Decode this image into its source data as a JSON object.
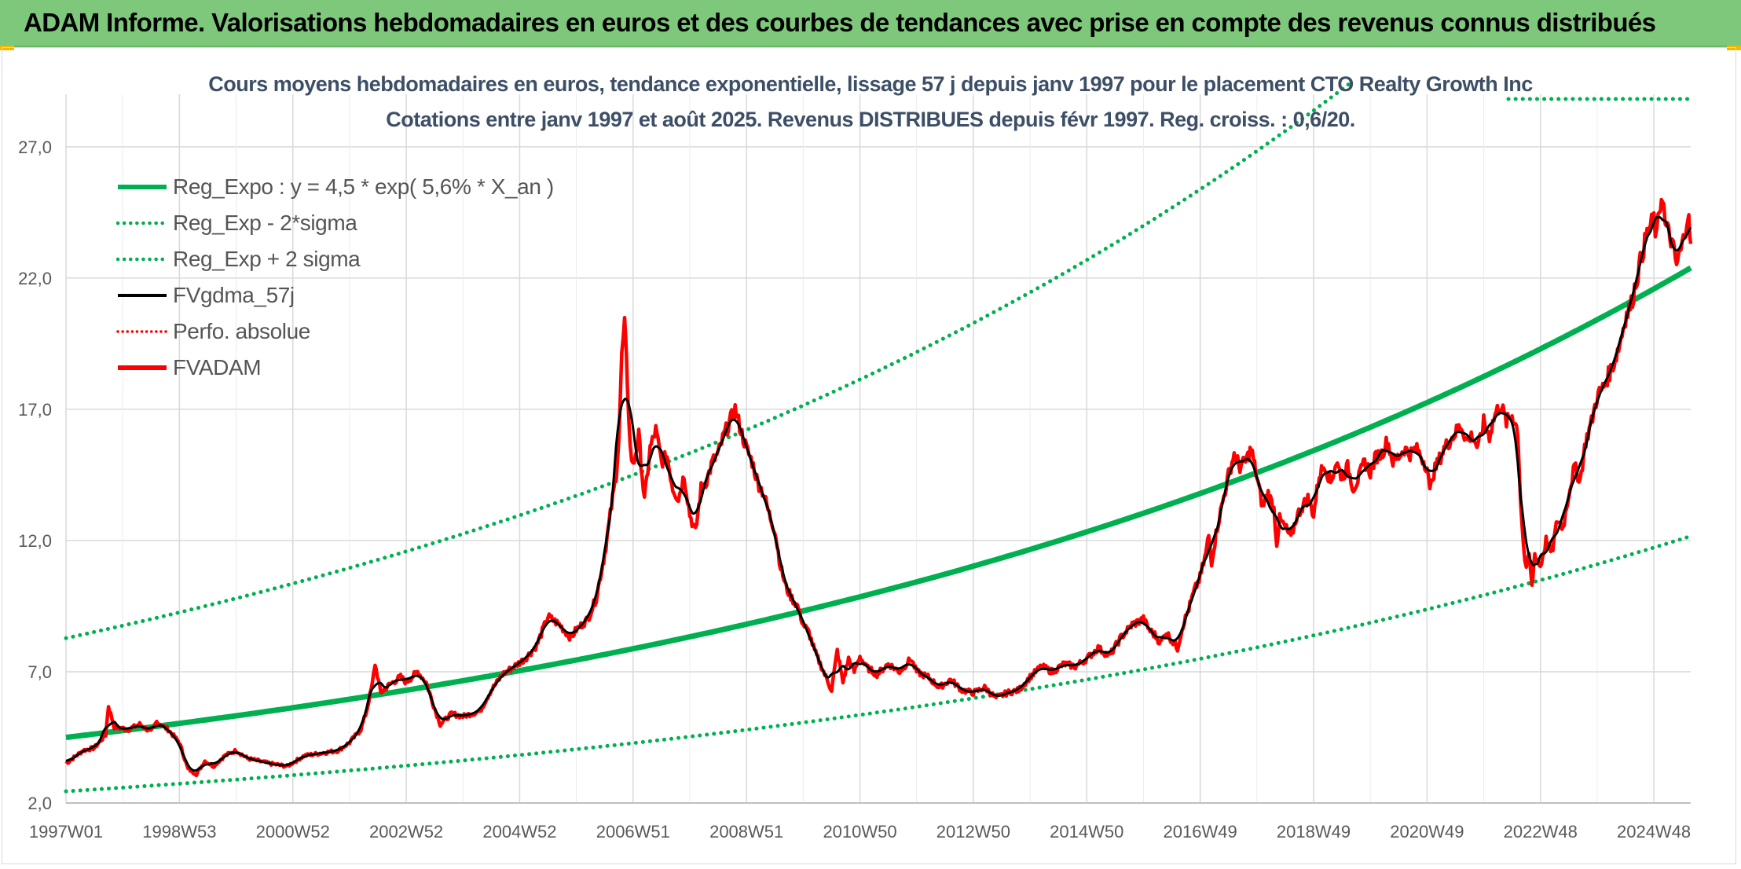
{
  "header": {
    "banner_title": "ADAM Informe. Valorisations hebdomadaires en euros et des courbes de tendances avec prise en compte des revenus connus distribués"
  },
  "colors": {
    "banner_bg": "#7ec87b",
    "title_text": "#3d4f66",
    "trend_green": "#00b050",
    "adam_red": "#ff0000",
    "smooth_black": "#000000"
  },
  "chart_data": {
    "type": "line",
    "title_line1": "Cours moyens hebdomadaires en euros, tendance exponentielle, lissage 57 j depuis janv 1997 pour le placement CTO Realty Growth Inc",
    "title_line2": "Cotations entre janv 1997 et août 2025. Revenus DISTRIBUES depuis févr 1997. Reg. croiss. : 0,6/20.",
    "ylim": [
      2.0,
      29.0
    ],
    "xlim": [
      1997.0,
      2025.65
    ],
    "grid": true,
    "legend_position": "top-left",
    "y_ticks": [
      "2,0",
      "7,0",
      "12,0",
      "17,0",
      "22,0",
      "27,0"
    ],
    "y_tick_values": [
      2,
      7,
      12,
      17,
      22,
      27
    ],
    "x_ticks": [
      "1997W01",
      "1998W53",
      "2000W52",
      "2002W52",
      "2004W52",
      "2006W51",
      "2008W51",
      "2010W50",
      "2012W50",
      "2014W50",
      "2016W49",
      "2018W49",
      "2020W49",
      "2022W48",
      "2024W48"
    ],
    "x_tick_values": [
      1997.0,
      1999.0,
      2001.0,
      2003.0,
      2005.0,
      2007.0,
      2009.0,
      2011.0,
      2013.0,
      2015.0,
      2017.0,
      2019.0,
      2021.0,
      2023.0,
      2025.0
    ],
    "regression": {
      "a": 4.5,
      "rate": 0.056,
      "sigma_factor": 1.84
    },
    "series": [
      {
        "name": "Reg_Expo : y = 4,5 * exp( 5,6% *  X_an )",
        "style": "solid-thick",
        "color": "#00b050"
      },
      {
        "name": "Reg_Exp - 2*sigma",
        "style": "dotted",
        "color": "#00b050"
      },
      {
        "name": "Reg_Exp + 2 sigma",
        "style": "dotted",
        "color": "#00b050"
      },
      {
        "name": "FVgdma_57j",
        "style": "solid",
        "color": "#000000"
      },
      {
        "name": "Perfo. absolue",
        "style": "dotted",
        "color": "#ff0000"
      },
      {
        "name": "FVADAM",
        "style": "solid-thick",
        "color": "#ff0000"
      }
    ],
    "fvadam_points": [
      [
        1997.0,
        3.5
      ],
      [
        1997.3,
        4.0
      ],
      [
        1997.5,
        4.1
      ],
      [
        1997.7,
        4.6
      ],
      [
        1997.75,
        5.7
      ],
      [
        1997.85,
        4.9
      ],
      [
        1998.1,
        4.8
      ],
      [
        1998.3,
        5.0
      ],
      [
        1998.5,
        4.7
      ],
      [
        1998.6,
        5.1
      ],
      [
        1998.8,
        4.8
      ],
      [
        1999.0,
        4.3
      ],
      [
        1999.15,
        3.3
      ],
      [
        1999.3,
        3.1
      ],
      [
        1999.45,
        3.6
      ],
      [
        1999.6,
        3.4
      ],
      [
        1999.8,
        3.8
      ],
      [
        2000.0,
        4.0
      ],
      [
        2000.2,
        3.7
      ],
      [
        2000.4,
        3.6
      ],
      [
        2000.6,
        3.5
      ],
      [
        2000.9,
        3.4
      ],
      [
        2001.2,
        3.8
      ],
      [
        2001.5,
        3.9
      ],
      [
        2001.8,
        4.0
      ],
      [
        2002.0,
        4.3
      ],
      [
        2002.2,
        4.8
      ],
      [
        2002.3,
        5.5
      ],
      [
        2002.4,
        6.5
      ],
      [
        2002.45,
        7.3
      ],
      [
        2002.55,
        6.2
      ],
      [
        2002.7,
        6.5
      ],
      [
        2002.9,
        6.8
      ],
      [
        2003.0,
        6.6
      ],
      [
        2003.2,
        7.0
      ],
      [
        2003.35,
        6.6
      ],
      [
        2003.5,
        5.6
      ],
      [
        2003.6,
        5.0
      ],
      [
        2003.8,
        5.4
      ],
      [
        2004.0,
        5.3
      ],
      [
        2004.3,
        5.5
      ],
      [
        2004.5,
        6.3
      ],
      [
        2004.7,
        6.9
      ],
      [
        2004.9,
        7.2
      ],
      [
        2005.1,
        7.5
      ],
      [
        2005.3,
        8.0
      ],
      [
        2005.5,
        9.1
      ],
      [
        2005.7,
        8.8
      ],
      [
        2005.9,
        8.3
      ],
      [
        2006.0,
        8.6
      ],
      [
        2006.2,
        9.0
      ],
      [
        2006.35,
        9.8
      ],
      [
        2006.5,
        11.5
      ],
      [
        2006.6,
        13.0
      ],
      [
        2006.7,
        14.5
      ],
      [
        2006.75,
        16.0
      ],
      [
        2006.8,
        19.0
      ],
      [
        2006.85,
        20.3
      ],
      [
        2006.9,
        18.0
      ],
      [
        2006.95,
        15.5
      ],
      [
        2007.0,
        14.8
      ],
      [
        2007.1,
        16.0
      ],
      [
        2007.2,
        13.5
      ],
      [
        2007.3,
        15.5
      ],
      [
        2007.4,
        16.2
      ],
      [
        2007.5,
        15.0
      ],
      [
        2007.6,
        15.2
      ],
      [
        2007.7,
        14.0
      ],
      [
        2007.8,
        13.6
      ],
      [
        2007.9,
        14.5
      ],
      [
        2008.0,
        13.0
      ],
      [
        2008.1,
        12.3
      ],
      [
        2008.2,
        14.0
      ],
      [
        2008.3,
        14.3
      ],
      [
        2008.4,
        15.0
      ],
      [
        2008.5,
        15.3
      ],
      [
        2008.6,
        16.0
      ],
      [
        2008.7,
        16.5
      ],
      [
        2008.8,
        17.0
      ],
      [
        2008.9,
        16.2
      ],
      [
        2009.0,
        15.5
      ],
      [
        2009.1,
        15.0
      ],
      [
        2009.2,
        14.2
      ],
      [
        2009.3,
        13.8
      ],
      [
        2009.4,
        13.0
      ],
      [
        2009.5,
        12.4
      ],
      [
        2009.6,
        11.0
      ],
      [
        2009.7,
        10.2
      ],
      [
        2009.8,
        9.8
      ],
      [
        2009.9,
        9.5
      ],
      [
        2010.0,
        8.8
      ],
      [
        2010.1,
        8.5
      ],
      [
        2010.2,
        7.8
      ],
      [
        2010.3,
        7.3
      ],
      [
        2010.4,
        6.8
      ],
      [
        2010.5,
        6.3
      ],
      [
        2010.6,
        7.8
      ],
      [
        2010.7,
        6.6
      ],
      [
        2010.8,
        7.5
      ],
      [
        2010.9,
        7.0
      ],
      [
        2011.0,
        7.6
      ],
      [
        2011.1,
        7.2
      ],
      [
        2011.3,
        6.9
      ],
      [
        2011.5,
        7.3
      ],
      [
        2011.7,
        7.0
      ],
      [
        2011.9,
        7.5
      ],
      [
        2012.0,
        7.0
      ],
      [
        2012.2,
        6.8
      ],
      [
        2012.4,
        6.4
      ],
      [
        2012.6,
        6.7
      ],
      [
        2012.8,
        6.3
      ],
      [
        2013.0,
        6.2
      ],
      [
        2013.2,
        6.4
      ],
      [
        2013.4,
        6.0
      ],
      [
        2013.6,
        6.2
      ],
      [
        2013.8,
        6.3
      ],
      [
        2014.0,
        6.8
      ],
      [
        2014.2,
        7.2
      ],
      [
        2014.4,
        7.0
      ],
      [
        2014.6,
        7.3
      ],
      [
        2014.8,
        7.2
      ],
      [
        2015.0,
        7.5
      ],
      [
        2015.2,
        7.9
      ],
      [
        2015.4,
        7.6
      ],
      [
        2015.6,
        8.3
      ],
      [
        2015.8,
        8.8
      ],
      [
        2015.9,
        8.9
      ],
      [
        2016.0,
        9.0
      ],
      [
        2016.1,
        8.6
      ],
      [
        2016.2,
        8.4
      ],
      [
        2016.3,
        8.1
      ],
      [
        2016.4,
        8.5
      ],
      [
        2016.5,
        8.2
      ],
      [
        2016.6,
        7.9
      ],
      [
        2016.7,
        8.8
      ],
      [
        2016.8,
        9.4
      ],
      [
        2016.9,
        10.1
      ],
      [
        2017.0,
        10.6
      ],
      [
        2017.1,
        11.5
      ],
      [
        2017.15,
        12.2
      ],
      [
        2017.2,
        11.2
      ],
      [
        2017.3,
        12.5
      ],
      [
        2017.4,
        13.5
      ],
      [
        2017.5,
        14.5
      ],
      [
        2017.6,
        15.3
      ],
      [
        2017.7,
        14.8
      ],
      [
        2017.8,
        15.0
      ],
      [
        2017.9,
        15.5
      ],
      [
        2018.0,
        14.4
      ],
      [
        2018.1,
        13.3
      ],
      [
        2018.2,
        13.8
      ],
      [
        2018.3,
        13.2
      ],
      [
        2018.35,
        11.9
      ],
      [
        2018.4,
        12.8
      ],
      [
        2018.5,
        12.5
      ],
      [
        2018.6,
        12.1
      ],
      [
        2018.7,
        12.9
      ],
      [
        2018.8,
        13.3
      ],
      [
        2018.9,
        13.6
      ],
      [
        2019.0,
        13.0
      ],
      [
        2019.1,
        14.5
      ],
      [
        2019.2,
        14.9
      ],
      [
        2019.3,
        14.2
      ],
      [
        2019.4,
        15.0
      ],
      [
        2019.5,
        14.4
      ],
      [
        2019.6,
        14.8
      ],
      [
        2019.7,
        14.0
      ],
      [
        2019.8,
        14.4
      ],
      [
        2019.9,
        15.0
      ],
      [
        2020.0,
        14.6
      ],
      [
        2020.1,
        15.2
      ],
      [
        2020.2,
        15.3
      ],
      [
        2020.3,
        15.8
      ],
      [
        2020.4,
        15.0
      ],
      [
        2020.5,
        15.2
      ],
      [
        2020.6,
        15.5
      ],
      [
        2020.7,
        15.3
      ],
      [
        2020.8,
        15.5
      ],
      [
        2020.9,
        15.2
      ],
      [
        2021.0,
        14.8
      ],
      [
        2021.05,
        13.8
      ],
      [
        2021.1,
        14.5
      ],
      [
        2021.2,
        15.0
      ],
      [
        2021.3,
        15.5
      ],
      [
        2021.4,
        15.8
      ],
      [
        2021.5,
        16.1
      ],
      [
        2021.6,
        16.4
      ],
      [
        2021.7,
        15.8
      ],
      [
        2021.8,
        16.0
      ],
      [
        2021.9,
        15.5
      ],
      [
        2022.0,
        16.5
      ],
      [
        2022.1,
        16.0
      ],
      [
        2022.2,
        16.8
      ],
      [
        2022.3,
        17.2
      ],
      [
        2022.4,
        16.5
      ],
      [
        2022.5,
        16.8
      ],
      [
        2022.6,
        16.2
      ],
      [
        2022.65,
        13.5
      ],
      [
        2022.7,
        11.8
      ],
      [
        2022.75,
        10.8
      ],
      [
        2022.8,
        11.5
      ],
      [
        2022.85,
        10.2
      ],
      [
        2022.9,
        11.5
      ],
      [
        2023.0,
        11.0
      ],
      [
        2023.1,
        12.0
      ],
      [
        2023.2,
        11.5
      ],
      [
        2023.3,
        12.8
      ],
      [
        2023.4,
        12.5
      ],
      [
        2023.5,
        13.8
      ],
      [
        2023.6,
        14.8
      ],
      [
        2023.7,
        14.3
      ],
      [
        2023.8,
        15.8
      ],
      [
        2023.9,
        16.5
      ],
      [
        2024.0,
        17.5
      ],
      [
        2024.1,
        17.8
      ],
      [
        2024.2,
        18.3
      ],
      [
        2024.3,
        18.8
      ],
      [
        2024.4,
        19.5
      ],
      [
        2024.5,
        20.5
      ],
      [
        2024.6,
        21.0
      ],
      [
        2024.7,
        22.0
      ],
      [
        2024.8,
        23.0
      ],
      [
        2024.9,
        23.8
      ],
      [
        2025.0,
        24.2
      ],
      [
        2025.05,
        23.5
      ],
      [
        2025.1,
        24.6
      ],
      [
        2025.15,
        25.3
      ],
      [
        2025.2,
        24.0
      ],
      [
        2025.3,
        23.5
      ],
      [
        2025.4,
        22.5
      ],
      [
        2025.5,
        23.2
      ],
      [
        2025.6,
        24.5
      ],
      [
        2025.65,
        23.3
      ]
    ]
  },
  "axes": {
    "x_labels_note": ""
  }
}
